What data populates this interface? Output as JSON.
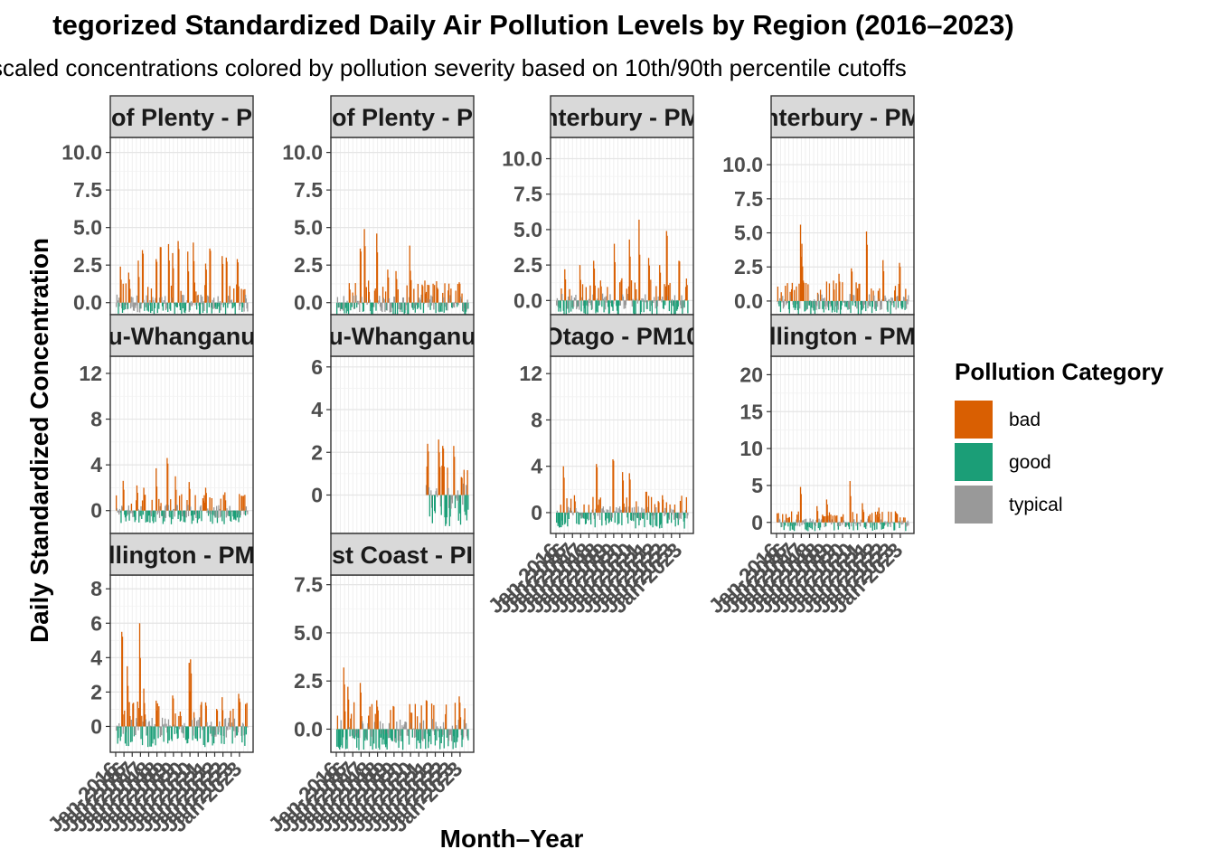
{
  "chart_data": {
    "type": "bar",
    "title": "tegorized Standardized Daily Air Pollution Levels by Region (2016–2023)",
    "subtitle": "scaled concentrations colored by pollution severity based on 10th/90th percentile cutoffs",
    "xlabel": "Month–Year",
    "ylabel": "Daily Standardized Concentration",
    "x_tick_labels_note": "Jan-2016 … Jan-2023 (rotated, overlapping, illegible)",
    "x_range": [
      "2016-01",
      "2023-12"
    ],
    "grid": true,
    "legend": {
      "title": "Pollution Category",
      "placement": "right",
      "entries": [
        {
          "label": "bad",
          "color": "#D95F02"
        },
        {
          "label": "good",
          "color": "#1B9E77"
        },
        {
          "label": "typical",
          "color": "#999999"
        }
      ]
    },
    "panels": [
      {
        "strip": "of Plenty - P",
        "ylim": [
          -0.8,
          11.0
        ],
        "yticks": [
          "0.0",
          "2.5",
          "5.0",
          "7.5",
          "10.0"
        ],
        "tick_values": [
          0,
          2.5,
          5,
          7.5,
          10
        ],
        "data_start": "2016-01",
        "peaks": [
          {
            "x": "2016-04",
            "y": 2.4
          },
          {
            "x": "2016-10",
            "y": 2.0
          },
          {
            "x": "2017-05",
            "y": 2.8
          },
          {
            "x": "2017-08",
            "y": 3.5
          },
          {
            "x": "2018-06",
            "y": 2.9
          },
          {
            "x": "2018-09",
            "y": 3.7
          },
          {
            "x": "2019-03",
            "y": 3.9
          },
          {
            "x": "2019-06",
            "y": 3.3
          },
          {
            "x": "2019-10",
            "y": 4.1
          },
          {
            "x": "2020-05",
            "y": 3.4
          },
          {
            "x": "2020-09",
            "y": 4.0
          },
          {
            "x": "2021-06",
            "y": 2.6
          },
          {
            "x": "2021-09",
            "y": 3.6
          },
          {
            "x": "2022-06",
            "y": 3.1
          },
          {
            "x": "2022-09",
            "y": 3.0
          },
          {
            "x": "2023-05",
            "y": 2.9
          }
        ],
        "bad_min": 0.5,
        "bad_max": 4.1,
        "good_min": -0.8
      },
      {
        "strip": "of Plenty - P",
        "ylim": [
          -0.8,
          11.0
        ],
        "yticks": [
          "0.0",
          "2.5",
          "5.0",
          "7.5",
          "10.0"
        ],
        "tick_values": [
          0,
          2.5,
          5,
          7.5,
          10
        ],
        "data_start": "2016-01",
        "peaks": [
          {
            "x": "2016-10",
            "y": 1.3
          },
          {
            "x": "2017-06",
            "y": 3.6
          },
          {
            "x": "2017-09",
            "y": 4.9
          },
          {
            "x": "2018-06",
            "y": 4.6
          },
          {
            "x": "2019-02",
            "y": 2.2
          },
          {
            "x": "2019-08",
            "y": 2.1
          },
          {
            "x": "2020-06",
            "y": 3.8
          },
          {
            "x": "2021-03",
            "y": 1.2
          },
          {
            "x": "2022-02",
            "y": 1.0
          }
        ],
        "bad_min": 0.6,
        "bad_max": 4.9,
        "good_min": -0.9
      },
      {
        "strip": "nterbury - PM",
        "ylim": [
          -1.0,
          11.5
        ],
        "yticks": [
          "0.0",
          "2.5",
          "5.0",
          "7.5",
          "10.0"
        ],
        "tick_values": [
          0,
          2.5,
          5,
          7.5,
          10
        ],
        "data_start": "2016-01",
        "peaks": [
          {
            "x": "2016-07",
            "y": 2.2
          },
          {
            "x": "2017-06",
            "y": 2.5
          },
          {
            "x": "2018-04",
            "y": 2.8
          },
          {
            "x": "2019-07",
            "y": 4.0
          },
          {
            "x": "2020-06",
            "y": 4.3
          },
          {
            "x": "2021-01",
            "y": 5.7
          },
          {
            "x": "2021-08",
            "y": 3.0
          },
          {
            "x": "2022-04",
            "y": 2.5
          },
          {
            "x": "2022-09",
            "y": 4.9
          },
          {
            "x": "2023-06",
            "y": 2.8
          }
        ],
        "bad_min": 0.7,
        "bad_max": 5.7,
        "good_min": -1.1
      },
      {
        "strip": "nterbury - PM",
        "ylim": [
          -1.0,
          12.0
        ],
        "yticks": [
          "0.0",
          "2.5",
          "5.0",
          "7.5",
          "10.0"
        ],
        "tick_values": [
          0,
          2.5,
          5,
          7.5,
          10
        ],
        "data_start": "2016-01",
        "peaks": [
          {
            "x": "2017-06",
            "y": 5.6
          },
          {
            "x": "2017-07",
            "y": 4.2
          },
          {
            "x": "2017-08",
            "y": 1.5
          },
          {
            "x": "2019-06",
            "y": 1.5
          },
          {
            "x": "2019-10",
            "y": 2.0
          },
          {
            "x": "2020-07",
            "y": 2.4
          },
          {
            "x": "2021-06",
            "y": 5.1
          },
          {
            "x": "2022-06",
            "y": 3.0
          },
          {
            "x": "2023-06",
            "y": 2.8
          }
        ],
        "bad_min": 0.6,
        "bad_max": 5.6,
        "good_min": -1.0
      },
      {
        "strip": "u-Whanganu",
        "ylim": [
          -2.0,
          13.5
        ],
        "yticks": [
          "0",
          "4",
          "8",
          "12"
        ],
        "tick_values": [
          0,
          4,
          8,
          12
        ],
        "data_start": "2016-01",
        "peaks": [
          {
            "x": "2016-06",
            "y": 2.6
          },
          {
            "x": "2017-04",
            "y": 2.2
          },
          {
            "x": "2017-09",
            "y": 2.0
          },
          {
            "x": "2018-06",
            "y": 3.7
          },
          {
            "x": "2019-02",
            "y": 4.6
          },
          {
            "x": "2019-08",
            "y": 3.0
          },
          {
            "x": "2020-06",
            "y": 2.5
          },
          {
            "x": "2021-06",
            "y": 2.0
          },
          {
            "x": "2022-08",
            "y": 1.6
          },
          {
            "x": "2023-08",
            "y": 1.3
          }
        ],
        "bad_min": 0.6,
        "bad_max": 4.6,
        "good_min": -1.2
      },
      {
        "strip": "u-Whanganu",
        "ylim": [
          -1.8,
          6.5
        ],
        "yticks": [
          "0",
          "2",
          "4",
          "6"
        ],
        "tick_values": [
          0,
          2,
          4,
          6
        ],
        "data_start": "2021-06",
        "peaks": [
          {
            "x": "2021-07",
            "y": 2.4
          },
          {
            "x": "2022-03",
            "y": 2.6
          },
          {
            "x": "2022-06",
            "y": 2.3
          },
          {
            "x": "2023-02",
            "y": 2.3
          }
        ],
        "bad_min": 0.6,
        "bad_max": 2.6,
        "good_min": -1.6
      },
      {
        "strip": "Otago - PM10",
        "ylim": [
          -1.8,
          13.5
        ],
        "yticks": [
          "0",
          "4",
          "8",
          "12"
        ],
        "tick_values": [
          0,
          4,
          8,
          12
        ],
        "data_start": "2016-01",
        "peaks": [
          {
            "x": "2016-06",
            "y": 4.0
          },
          {
            "x": "2017-02",
            "y": 1.5
          },
          {
            "x": "2018-06",
            "y": 4.2
          },
          {
            "x": "2019-06",
            "y": 4.6
          },
          {
            "x": "2020-01",
            "y": 3.5
          },
          {
            "x": "2020-06",
            "y": 3.4
          },
          {
            "x": "2021-06",
            "y": 1.8
          },
          {
            "x": "2022-06",
            "y": 1.5
          }
        ],
        "bad_min": 0.6,
        "bad_max": 4.6,
        "good_min": -1.4
      },
      {
        "strip": "llington - PM",
        "ylim": [
          -1.5,
          22.5
        ],
        "yticks": [
          "0",
          "5",
          "10",
          "15",
          "20"
        ],
        "tick_values": [
          0,
          5,
          10,
          15,
          20
        ],
        "data_start": "2016-01",
        "peaks": [
          {
            "x": "2017-06",
            "y": 4.8
          },
          {
            "x": "2018-06",
            "y": 2.2
          },
          {
            "x": "2019-01",
            "y": 3.1
          },
          {
            "x": "2020-06",
            "y": 5.6
          },
          {
            "x": "2021-03",
            "y": 2.6
          },
          {
            "x": "2022-03",
            "y": 2.0
          },
          {
            "x": "2023-03",
            "y": 1.5
          }
        ],
        "bad_min": 0.6,
        "bad_max": 5.6,
        "good_min": -1.2
      },
      {
        "strip": "llington - PM",
        "ylim": [
          -1.5,
          8.8
        ],
        "yticks": [
          "0",
          "2",
          "4",
          "6",
          "8"
        ],
        "tick_values": [
          0,
          2,
          4,
          6,
          8
        ],
        "data_start": "2016-01",
        "peaks": [
          {
            "x": "2016-05",
            "y": 5.5
          },
          {
            "x": "2016-09",
            "y": 3.5
          },
          {
            "x": "2017-06",
            "y": 6.0
          },
          {
            "x": "2017-09",
            "y": 2.2
          },
          {
            "x": "2018-06",
            "y": 1.5
          },
          {
            "x": "2019-06",
            "y": 1.8
          },
          {
            "x": "2020-06",
            "y": 3.7
          },
          {
            "x": "2020-07",
            "y": 3.9
          },
          {
            "x": "2021-06",
            "y": 1.4
          },
          {
            "x": "2022-06",
            "y": 1.7
          },
          {
            "x": "2023-06",
            "y": 1.9
          }
        ],
        "bad_min": 0.6,
        "bad_max": 6.0,
        "good_min": -1.2
      },
      {
        "strip": "st Coast - PI",
        "ylim": [
          -1.2,
          8.0
        ],
        "yticks": [
          "0.0",
          "2.5",
          "5.0",
          "7.5"
        ],
        "tick_values": [
          0,
          2.5,
          5,
          7.5
        ],
        "data_start": "2016-01",
        "peaks": [
          {
            "x": "2016-06",
            "y": 3.2
          },
          {
            "x": "2016-09",
            "y": 2.2
          },
          {
            "x": "2017-06",
            "y": 2.4
          },
          {
            "x": "2018-06",
            "y": 1.5
          },
          {
            "x": "2019-06",
            "y": 1.2
          },
          {
            "x": "2020-06",
            "y": 1.3
          },
          {
            "x": "2021-06",
            "y": 1.5
          },
          {
            "x": "2023-06",
            "y": 1.7
          }
        ],
        "bad_min": 0.5,
        "bad_max": 3.2,
        "good_min": -1.1
      }
    ]
  }
}
